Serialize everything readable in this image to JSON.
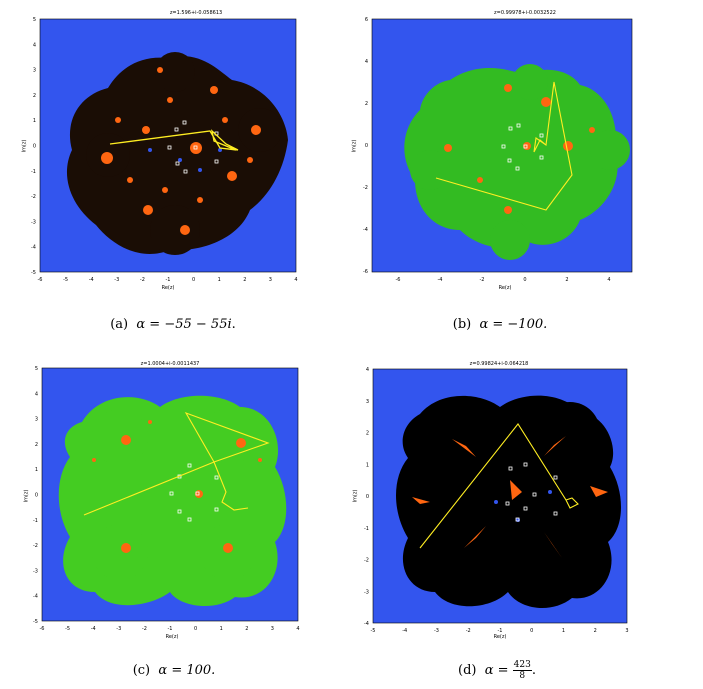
{
  "panels": [
    {
      "id": "a",
      "plot_title": "z=1.596+i-0.058613",
      "x_axis_label": "Re(z)",
      "y_axis_label": "Im(z)",
      "x_ticks": [
        "-6",
        "-5",
        "-4",
        "-3",
        "-2",
        "-1",
        "0",
        "1",
        "2",
        "3",
        "4"
      ],
      "y_ticks": [
        "5",
        "4",
        "3",
        "2",
        "1",
        "0",
        "-1",
        "-2",
        "-3",
        "-4",
        "-5"
      ],
      "caption_prefix": "(a)",
      "caption_alpha": "α = −55 − 55",
      "caption_suffix": "i",
      "caption_end": ".",
      "fractal_color": "#1a0d05",
      "background_color": "#3355ee",
      "orbit_color": "#ffee22"
    },
    {
      "id": "b",
      "plot_title": "z=0.99978+i-0.0032522",
      "x_axis_label": "Re(z)",
      "y_axis_label": "Im(z)",
      "x_ticks": [
        "-6",
        "-4",
        "-2",
        "0",
        "2",
        "4"
      ],
      "y_ticks": [
        "6",
        "4",
        "2",
        "0",
        "-2",
        "-4",
        "-6"
      ],
      "caption_prefix": "(b)",
      "caption_alpha": "α = −100.",
      "fractal_color": "#33bb22",
      "background_color": "#3355ee",
      "orbit_color": "#ffee22"
    },
    {
      "id": "c",
      "plot_title": "z=1.0004+i-0.0011437",
      "x_axis_label": "Re(z)",
      "y_axis_label": "Im(z)",
      "x_ticks": [
        "-6",
        "-5",
        "-4",
        "-3",
        "-2",
        "-1",
        "0",
        "1",
        "2",
        "3",
        "4"
      ],
      "y_ticks": [
        "5",
        "4",
        "3",
        "2",
        "1",
        "0",
        "-1",
        "-2",
        "-3",
        "-4",
        "-5"
      ],
      "caption_prefix": "(c)",
      "caption_alpha": "α = 100.",
      "fractal_color": "#44cc22",
      "background_color": "#3355ee",
      "orbit_color": "#ffee22"
    },
    {
      "id": "d",
      "plot_title": "z=0.99824+i-0.064218",
      "x_axis_label": "Re(z)",
      "y_axis_label": "Im(z)",
      "x_ticks": [
        "-5",
        "-4",
        "-3",
        "-2",
        "-1",
        "0",
        "1",
        "2",
        "3"
      ],
      "y_ticks": [
        "4",
        "3",
        "2",
        "1",
        "0",
        "-1",
        "-2",
        "-3",
        "-4"
      ],
      "caption_prefix": "(d)",
      "caption_alpha": "α = ",
      "caption_frac_num": "423",
      "caption_frac_den": "8",
      "caption_end": ".",
      "fractal_color": "#000000",
      "background_color": "#3355ee",
      "orbit_color": "#ffee22"
    }
  ]
}
